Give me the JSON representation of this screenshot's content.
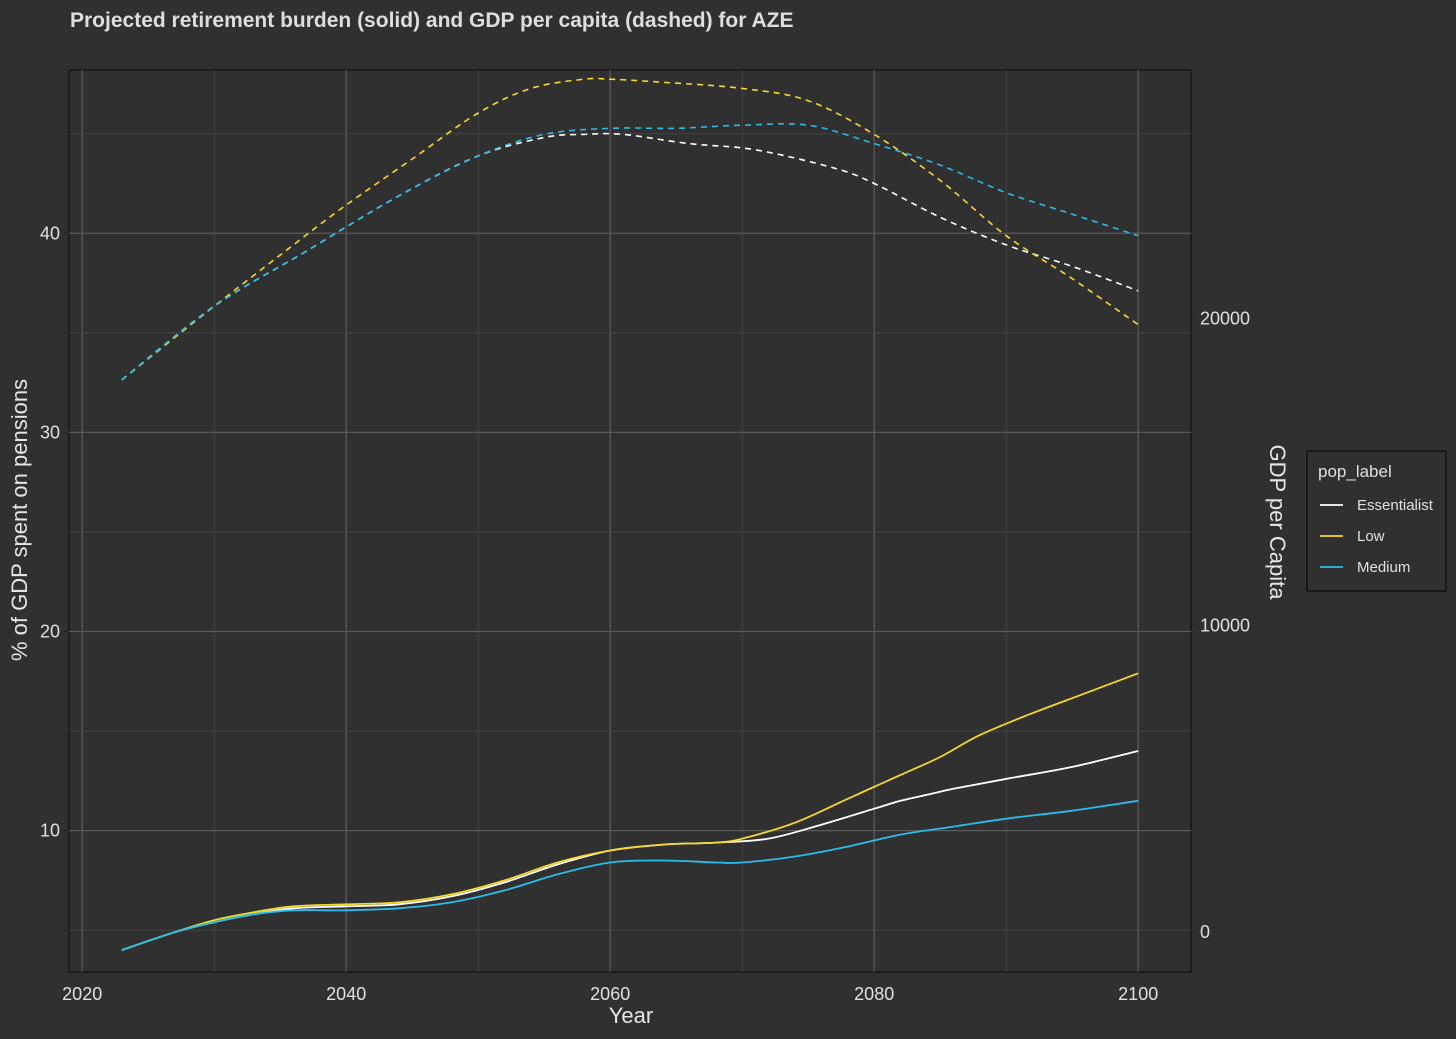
{
  "chart_data": {
    "type": "line",
    "title": "Projected retirement burden (solid) and GDP per capita (dashed) for AZE",
    "xlabel": "Year",
    "ylabel": "% of GDP spent on pensions",
    "ylabel_right": "GDP per Capita",
    "xlim": [
      2019,
      2104
    ],
    "ylim": [
      2.9,
      48.2
    ],
    "ylim_right": [
      -1300,
      28100
    ],
    "x_ticks": [
      "2020",
      "2040",
      "2060",
      "2080",
      "2100"
    ],
    "y_ticks": [
      "10",
      "20",
      "30",
      "40"
    ],
    "y_ticks_right": [
      "0",
      "10000",
      "20000"
    ],
    "grid": true,
    "legend_title": "pop_label",
    "legend_position": "right",
    "colors": {
      "background": "#303030",
      "grid": "#5a5a5a",
      "Essentialist": "#ffffff",
      "Low": "#f5d92a",
      "Medium": "#29bde8"
    },
    "series": [
      {
        "name": "Essentialist",
        "color": "#ffffff",
        "pension_pct": {
          "x": [
            2023,
            2027,
            2030,
            2033,
            2036,
            2040,
            2044,
            2048,
            2052,
            2056,
            2060,
            2064,
            2068,
            2072,
            2076,
            2080,
            2082,
            2084,
            2086,
            2090,
            2095,
            2100
          ],
          "y": [
            4.0,
            4.9,
            5.4,
            5.8,
            6.1,
            6.2,
            6.3,
            6.7,
            7.4,
            8.3,
            9.0,
            9.3,
            9.4,
            9.6,
            10.3,
            11.1,
            11.5,
            11.8,
            12.1,
            12.6,
            13.2,
            14.0
          ]
        },
        "gdp_per_capita": {
          "x": [
            2023,
            2030,
            2037,
            2044,
            2050,
            2055,
            2058,
            2061,
            2066,
            2071,
            2077,
            2080,
            2085,
            2090,
            2095,
            2100
          ],
          "y": [
            18000,
            20400,
            22200,
            24000,
            25300,
            25900,
            26000,
            26000,
            25700,
            25500,
            24900,
            24400,
            23300,
            22400,
            21700,
            20900
          ]
        }
      },
      {
        "name": "Low",
        "color": "#f5d92a",
        "pension_pct": {
          "x": [
            2023,
            2027,
            2030,
            2033,
            2036,
            2040,
            2044,
            2048,
            2052,
            2056,
            2060,
            2064,
            2068,
            2070,
            2074,
            2078,
            2082,
            2085,
            2088,
            2092,
            2096,
            2100
          ],
          "y": [
            4.0,
            4.9,
            5.5,
            5.9,
            6.2,
            6.3,
            6.4,
            6.8,
            7.5,
            8.4,
            9.0,
            9.3,
            9.4,
            9.6,
            10.4,
            11.6,
            12.8,
            13.7,
            14.8,
            15.9,
            16.9,
            17.9
          ]
        },
        "gdp_per_capita": {
          "x": [
            2023,
            2030,
            2036,
            2040,
            2045,
            2050,
            2054,
            2058,
            2060,
            2064,
            2070,
            2075,
            2080,
            2085,
            2090,
            2095,
            2100
          ],
          "y": [
            18000,
            20400,
            22400,
            23700,
            25200,
            26700,
            27500,
            27800,
            27800,
            27700,
            27500,
            27100,
            26000,
            24500,
            22700,
            21300,
            19800
          ]
        }
      },
      {
        "name": "Medium",
        "color": "#29bde8",
        "pension_pct": {
          "x": [
            2023,
            2027,
            2030,
            2033,
            2036,
            2040,
            2044,
            2048,
            2052,
            2056,
            2060,
            2064,
            2068,
            2070,
            2074,
            2078,
            2082,
            2086,
            2090,
            2095,
            2100
          ],
          "y": [
            4.0,
            4.9,
            5.4,
            5.8,
            6.0,
            6.0,
            6.1,
            6.4,
            7.0,
            7.8,
            8.4,
            8.5,
            8.4,
            8.4,
            8.7,
            9.2,
            9.8,
            10.2,
            10.6,
            11.0,
            11.5
          ]
        },
        "gdp_per_capita": {
          "x": [
            2023,
            2030,
            2037,
            2044,
            2050,
            2055,
            2060,
            2065,
            2070,
            2075,
            2080,
            2085,
            2090,
            2095,
            2100
          ],
          "y": [
            18000,
            20400,
            22200,
            24000,
            25300,
            26000,
            26200,
            26200,
            26300,
            26300,
            25700,
            25000,
            24100,
            23400,
            22700
          ]
        }
      }
    ]
  }
}
